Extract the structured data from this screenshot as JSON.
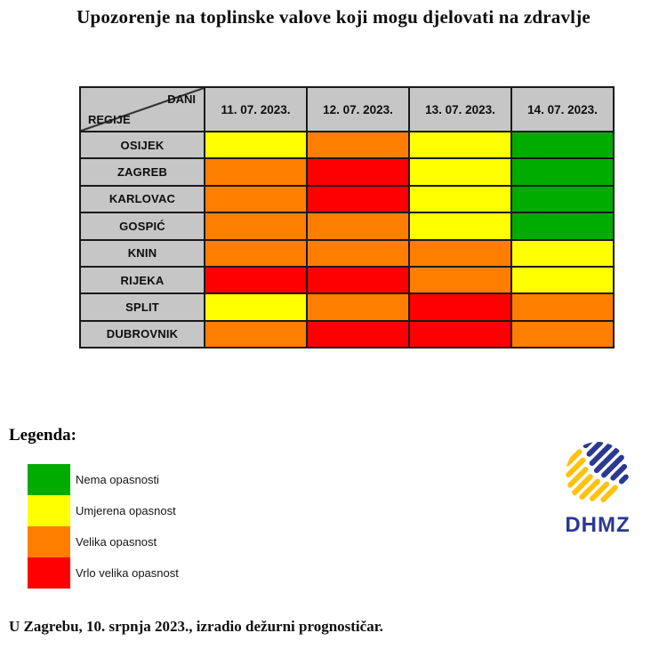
{
  "title": "Upozorenje na toplinske valove koji mogu djelovati na zdravlje",
  "table": {
    "corner": {
      "top_right": "DANI",
      "bottom_left": "REGIJE"
    },
    "header_bg": "#C6C6C6",
    "border_color": "#1A1A1A"
  },
  "chart_data": {
    "type": "heatmap",
    "title": "Upozorenje na toplinske valove koji mogu djelovati na zdravlje",
    "x_categories": [
      "11. 07. 2023.",
      "12. 07. 2023.",
      "13. 07. 2023.",
      "14. 07. 2023."
    ],
    "y_categories": [
      "OSIJEK",
      "ZAGREB",
      "KARLOVAC",
      "GOSPIĆ",
      "KNIN",
      "RIJEKA",
      "SPLIT",
      "DUBROVNIK"
    ],
    "values": [
      [
        "umjerena",
        "velika",
        "umjerena",
        "nema"
      ],
      [
        "velika",
        "vrlo_velika",
        "umjerena",
        "nema"
      ],
      [
        "velika",
        "vrlo_velika",
        "umjerena",
        "nema"
      ],
      [
        "velika",
        "velika",
        "umjerena",
        "nema"
      ],
      [
        "velika",
        "velika",
        "velika",
        "umjerena"
      ],
      [
        "vrlo_velika",
        "vrlo_velika",
        "velika",
        "umjerena"
      ],
      [
        "umjerena",
        "velika",
        "vrlo_velika",
        "velika"
      ],
      [
        "velika",
        "vrlo_velika",
        "vrlo_velika",
        "velika"
      ]
    ],
    "value_labels": {
      "nema": "Nema opasnosti",
      "umjerena": "Umjerena opasnost",
      "velika": "Velika opasnost",
      "vrlo_velika": "Vrlo velika opasnost"
    },
    "colors": {
      "nema": "#00AC00",
      "umjerena": "#FFFF00",
      "velika": "#FF7E00",
      "vrlo_velika": "#FF0000"
    },
    "legend_position": "bottom-left",
    "grid": true
  },
  "legend": {
    "heading": "Legenda:",
    "items": [
      {
        "label": "Nema opasnosti",
        "color": "#00AC00"
      },
      {
        "label": "Umjerena opasnost",
        "color": "#FFFF00"
      },
      {
        "label": "Velika opasnost",
        "color": "#FF7E00"
      },
      {
        "label": "Vrlo velika opasnost",
        "color": "#FF0000"
      }
    ]
  },
  "logo": {
    "text": "DHMZ",
    "blue": "#2B3990",
    "yellow": "#FFC20E"
  },
  "footer": "U Zagrebu, 10. srpnja 2023., izradio dežurni prognostičar."
}
